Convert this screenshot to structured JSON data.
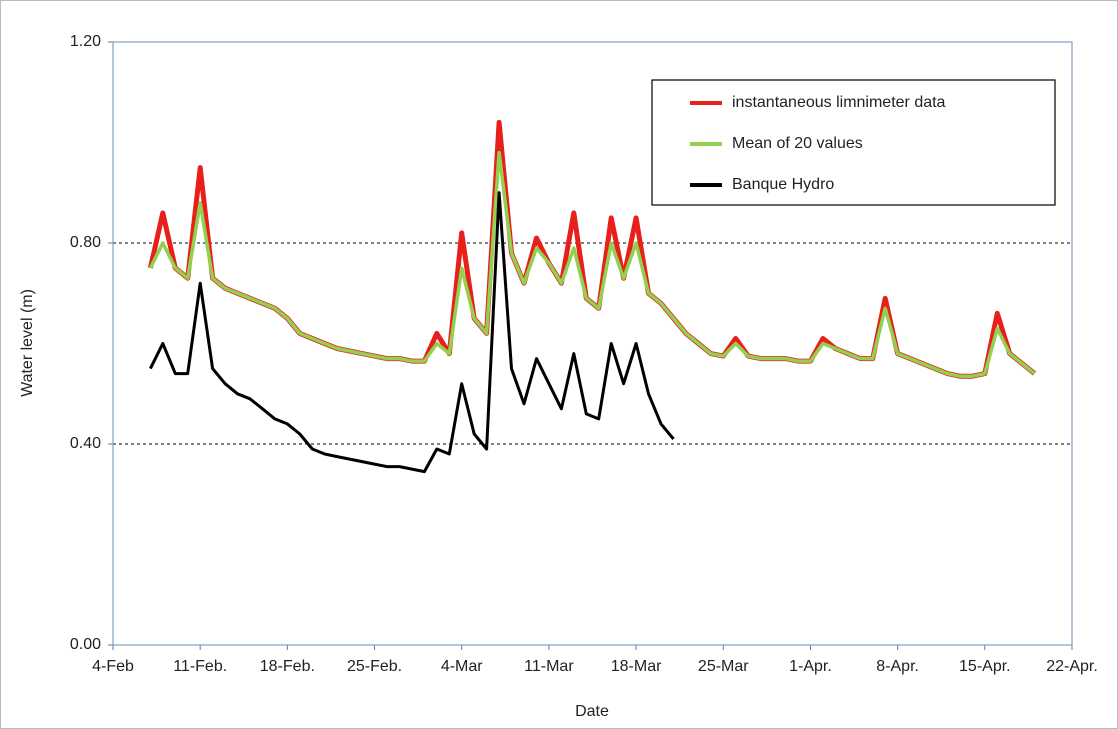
{
  "chart_data": {
    "type": "line",
    "y_label": "Water level (m)",
    "x_label": "Date",
    "x": [
      "02-07",
      "02-08",
      "02-09",
      "02-10",
      "02-11",
      "02-12",
      "02-13",
      "02-14",
      "02-15",
      "02-16",
      "02-17",
      "02-18",
      "02-19",
      "02-20",
      "02-21",
      "02-22",
      "02-23",
      "02-24",
      "02-25",
      "02-26",
      "02-27",
      "02-28",
      "03-01",
      "03-02",
      "03-03",
      "03-04",
      "03-05",
      "03-06",
      "03-07",
      "03-08",
      "03-09",
      "03-10",
      "03-11",
      "03-12",
      "03-13",
      "03-14",
      "03-15",
      "03-16",
      "03-17",
      "03-18",
      "03-19",
      "03-20",
      "03-21",
      "03-22",
      "03-23",
      "03-24",
      "03-25",
      "03-26",
      "03-27",
      "03-28",
      "03-29",
      "03-30",
      "03-31",
      "04-01",
      "04-02",
      "04-03",
      "04-04",
      "04-05",
      "04-06",
      "04-07",
      "04-08",
      "04-09",
      "04-10",
      "04-11",
      "04-12",
      "04-13",
      "04-14",
      "04-15",
      "04-16",
      "04-17",
      "04-18",
      "04-19"
    ],
    "series": [
      {
        "name": "instantaneous limnimeter data",
        "color": "#e8201c",
        "values": [
          0.75,
          0.86,
          0.75,
          0.73,
          0.95,
          0.73,
          0.71,
          0.7,
          0.69,
          0.68,
          0.67,
          0.65,
          0.62,
          0.61,
          0.6,
          0.59,
          0.585,
          0.58,
          0.575,
          0.57,
          0.57,
          0.565,
          0.565,
          0.62,
          0.58,
          0.82,
          0.65,
          0.62,
          1.04,
          0.78,
          0.72,
          0.81,
          0.76,
          0.72,
          0.86,
          0.69,
          0.67,
          0.85,
          0.73,
          0.85,
          0.7,
          0.68,
          0.65,
          0.62,
          0.6,
          0.58,
          0.575,
          0.61,
          0.575,
          0.57,
          0.57,
          0.57,
          0.565,
          0.565,
          0.61,
          0.59,
          0.58,
          0.57,
          0.57,
          0.69,
          0.58,
          0.57,
          0.56,
          0.55,
          0.54,
          0.535,
          0.535,
          0.54,
          0.66,
          0.58,
          0.56,
          0.54
        ]
      },
      {
        "name": "Mean of 20 values",
        "color": "#92d050",
        "values": [
          0.75,
          0.8,
          0.75,
          0.73,
          0.88,
          0.73,
          0.71,
          0.7,
          0.69,
          0.68,
          0.67,
          0.65,
          0.62,
          0.61,
          0.6,
          0.59,
          0.585,
          0.58,
          0.575,
          0.57,
          0.57,
          0.565,
          0.565,
          0.6,
          0.58,
          0.75,
          0.65,
          0.62,
          0.98,
          0.78,
          0.72,
          0.79,
          0.76,
          0.72,
          0.79,
          0.69,
          0.67,
          0.8,
          0.73,
          0.8,
          0.7,
          0.68,
          0.65,
          0.62,
          0.6,
          0.58,
          0.575,
          0.6,
          0.575,
          0.57,
          0.57,
          0.57,
          0.565,
          0.565,
          0.6,
          0.59,
          0.58,
          0.57,
          0.57,
          0.67,
          0.58,
          0.57,
          0.56,
          0.55,
          0.54,
          0.535,
          0.535,
          0.54,
          0.63,
          0.58,
          0.56,
          0.54
        ]
      },
      {
        "name": "Banque Hydro",
        "color": "#000000",
        "values": [
          0.55,
          0.6,
          0.54,
          0.54,
          0.72,
          0.55,
          0.52,
          0.5,
          0.49,
          0.47,
          0.45,
          0.44,
          0.42,
          0.39,
          0.38,
          0.375,
          0.37,
          0.365,
          0.36,
          0.355,
          0.355,
          0.35,
          0.345,
          0.39,
          0.38,
          0.52,
          0.42,
          0.39,
          0.9,
          0.55,
          0.48,
          0.57,
          0.52,
          0.47,
          0.58,
          0.46,
          0.45,
          0.6,
          0.52,
          0.6,
          0.5,
          0.44,
          0.41,
          null,
          null,
          null,
          null,
          null,
          null,
          null,
          null,
          null,
          null,
          null,
          null,
          null,
          null,
          null,
          null,
          null,
          null,
          null,
          null,
          null,
          null,
          null,
          null,
          null,
          null,
          null,
          null,
          null
        ]
      }
    ],
    "xlim": [
      "02-04",
      "04-22"
    ],
    "xticks": [
      {
        "value": "02-04",
        "label": "4-Feb"
      },
      {
        "value": "02-11",
        "label": "11-Feb."
      },
      {
        "value": "02-18",
        "label": "18-Feb."
      },
      {
        "value": "02-25",
        "label": "25-Feb."
      },
      {
        "value": "03-04",
        "label": "4-Mar"
      },
      {
        "value": "03-11",
        "label": "11-Mar"
      },
      {
        "value": "03-18",
        "label": "18-Mar"
      },
      {
        "value": "03-25",
        "label": "25-Mar"
      },
      {
        "value": "04-01",
        "label": "1-Apr."
      },
      {
        "value": "04-08",
        "label": "8-Apr."
      },
      {
        "value": "04-15",
        "label": "15-Apr."
      },
      {
        "value": "04-22",
        "label": "22-Apr."
      }
    ],
    "ylim": [
      0,
      1.2
    ],
    "yticks": [
      {
        "value": 0,
        "label": "0.00"
      },
      {
        "value": 0.4,
        "label": "0.40"
      },
      {
        "value": 0.8,
        "label": "0.80"
      },
      {
        "value": 1.2,
        "label": "1.20"
      }
    ],
    "grid": true,
    "legend": "upper right"
  }
}
